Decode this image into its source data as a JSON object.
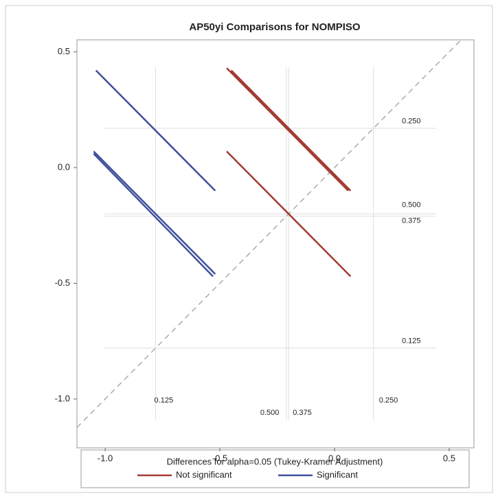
{
  "chart_data": {
    "type": "diffogram",
    "title": "AP50yi Comparisons for NOMPISO",
    "xlim": [
      -1.123,
      0.608
    ],
    "ylim": [
      -1.211,
      0.552
    ],
    "xticks": [
      {
        "value": -1,
        "label": "-1.0"
      },
      {
        "value": -0.5,
        "label": "-0.5"
      },
      {
        "value": 0,
        "label": "0.0"
      },
      {
        "value": 0.5,
        "label": "0.5"
      }
    ],
    "yticks": [
      {
        "value": -1,
        "label": "-1.0"
      },
      {
        "value": -0.5,
        "label": "-0.5"
      },
      {
        "value": 0,
        "label": "0.0"
      },
      {
        "value": 0.5,
        "label": "0.5"
      }
    ],
    "ref_lines": [
      {
        "label": "0.125",
        "value": -0.78
      },
      {
        "label": "0.250",
        "value": 0.17
      },
      {
        "label": "0.375",
        "value": -0.2
      },
      {
        "label": "0.500",
        "value": -0.21
      }
    ],
    "legend_title": "Differences for alpha=0.05 (Tukey-Kramer Adjustment)",
    "series": [
      {
        "name": "Not significant",
        "color": "#a23a32",
        "segments": [
          [
            -0.47,
            0.43,
            0.06,
            -0.1
          ],
          [
            -0.45,
            0.42,
            0.07,
            -0.1
          ],
          [
            -0.47,
            0.07,
            0.07,
            -0.47
          ]
        ]
      },
      {
        "name": "Significant",
        "color": "#3f4f9a",
        "segments": [
          [
            -1.04,
            0.42,
            -0.52,
            -0.1
          ],
          [
            -1.05,
            0.07,
            -0.52,
            -0.46
          ],
          [
            -1.05,
            0.06,
            -0.53,
            -0.47
          ]
        ]
      }
    ]
  }
}
